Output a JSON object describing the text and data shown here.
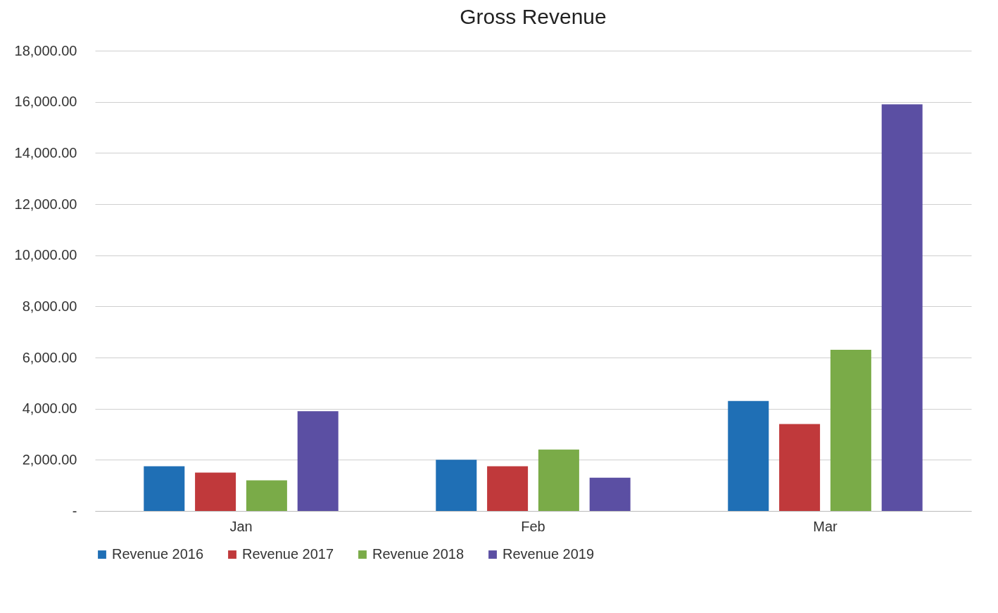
{
  "chart_data": {
    "type": "bar",
    "title": "Gross Revenue",
    "categories": [
      "Jan",
      "Feb",
      "Mar"
    ],
    "series": [
      {
        "name": "Revenue 2016",
        "color": "#1f6fb5",
        "values": [
          1750,
          2000,
          4300
        ]
      },
      {
        "name": "Revenue 2017",
        "color": "#c0393b",
        "values": [
          1500,
          1750,
          3400
        ]
      },
      {
        "name": "Revenue 2018",
        "color": "#7aab48",
        "values": [
          1200,
          2400,
          6300
        ]
      },
      {
        "name": "Revenue 2019",
        "color": "#5b4fa3",
        "values": [
          3900,
          1300,
          15900
        ]
      }
    ],
    "ylim": [
      0,
      18000
    ],
    "yticks": [
      {
        "value": 0,
        "label": "-"
      },
      {
        "value": 2000,
        "label": "2,000.00"
      },
      {
        "value": 4000,
        "label": "4,000.00"
      },
      {
        "value": 6000,
        "label": "6,000.00"
      },
      {
        "value": 8000,
        "label": "8,000.00"
      },
      {
        "value": 10000,
        "label": "10,000.00"
      },
      {
        "value": 12000,
        "label": "12,000.00"
      },
      {
        "value": 14000,
        "label": "14,000.00"
      },
      {
        "value": 16000,
        "label": "16,000.00"
      },
      {
        "value": 18000,
        "label": "18,000.00"
      }
    ],
    "grid": "y",
    "legend": "bottom"
  }
}
